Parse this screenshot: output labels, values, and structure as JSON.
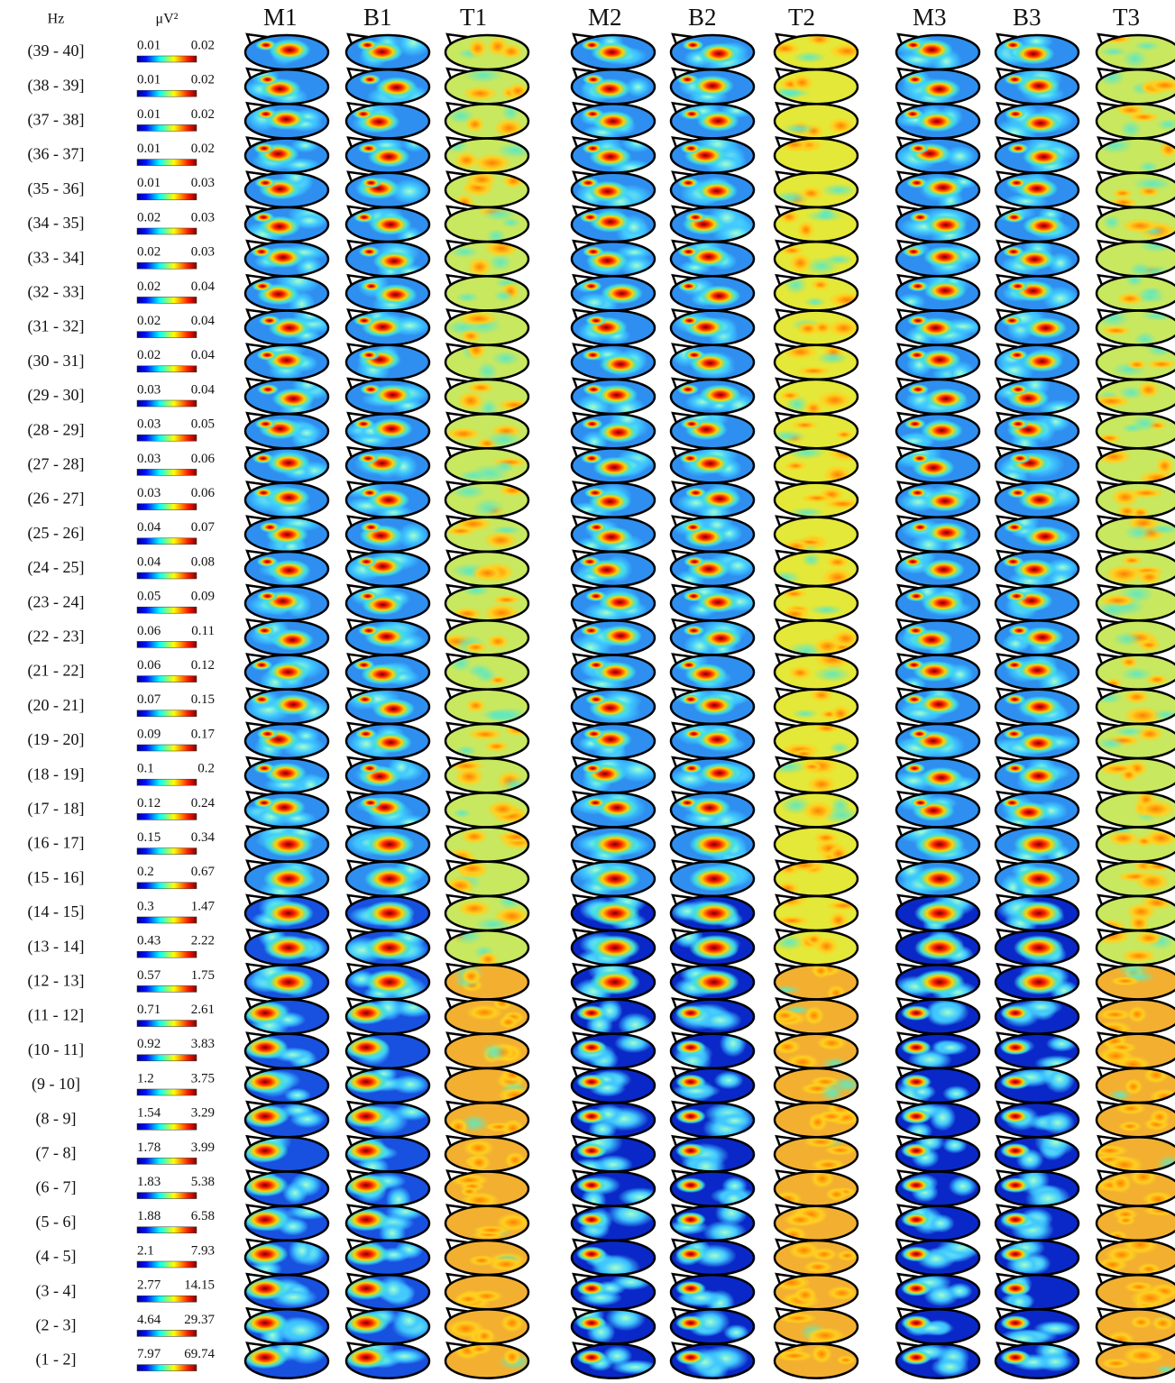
{
  "header": {
    "columns": [
      "Hz",
      "μV²",
      "M1",
      "B1",
      "T1",
      "M2",
      "B2",
      "T2",
      "M3",
      "B3",
      "T3"
    ]
  },
  "rows": [
    {
      "band": "(39 - 40]",
      "min": "0.01",
      "max": "0.02"
    },
    {
      "band": "(38 - 39]",
      "min": "0.01",
      "max": "0.02"
    },
    {
      "band": "(37 - 38]",
      "min": "0.01",
      "max": "0.02"
    },
    {
      "band": "(36 - 37]",
      "min": "0.01",
      "max": "0.02"
    },
    {
      "band": "(35 - 36]",
      "min": "0.01",
      "max": "0.03"
    },
    {
      "band": "(34 - 35]",
      "min": "0.02",
      "max": "0.03"
    },
    {
      "band": "(33 - 34]",
      "min": "0.02",
      "max": "0.03"
    },
    {
      "band": "(32 - 33]",
      "min": "0.02",
      "max": "0.04"
    },
    {
      "band": "(31 - 32]",
      "min": "0.02",
      "max": "0.04"
    },
    {
      "band": "(30 - 31]",
      "min": "0.02",
      "max": "0.04"
    },
    {
      "band": "(29 - 30]",
      "min": "0.03",
      "max": "0.04"
    },
    {
      "band": "(28 - 29]",
      "min": "0.03",
      "max": "0.05"
    },
    {
      "band": "(27 - 28]",
      "min": "0.03",
      "max": "0.06"
    },
    {
      "band": "(26 - 27]",
      "min": "0.03",
      "max": "0.06"
    },
    {
      "band": "(25 - 26]",
      "min": "0.04",
      "max": "0.07"
    },
    {
      "band": "(24 - 25]",
      "min": "0.04",
      "max": "0.08"
    },
    {
      "band": "(23 - 24]",
      "min": "0.05",
      "max": "0.09"
    },
    {
      "band": "(22 - 23]",
      "min": "0.06",
      "max": "0.11"
    },
    {
      "band": "(21 - 22]",
      "min": "0.06",
      "max": "0.12"
    },
    {
      "band": "(20 - 21]",
      "min": "0.07",
      "max": "0.15"
    },
    {
      "band": "(19 - 20]",
      "min": "0.09",
      "max": "0.17"
    },
    {
      "band": "(18 - 19]",
      "min": "0.1",
      "max": "0.2"
    },
    {
      "band": "(17 - 18]",
      "min": "0.12",
      "max": "0.24"
    },
    {
      "band": "(16 - 17]",
      "min": "0.15",
      "max": "0.34"
    },
    {
      "band": "(15 - 16]",
      "min": "0.2",
      "max": "0.67"
    },
    {
      "band": "(14 - 15]",
      "min": "0.3",
      "max": "1.47"
    },
    {
      "band": "(13 - 14]",
      "min": "0.43",
      "max": "2.22"
    },
    {
      "band": "(12 - 13]",
      "min": "0.57",
      "max": "1.75"
    },
    {
      "band": "(11 - 12]",
      "min": "0.71",
      "max": "2.61"
    },
    {
      "band": "(10 - 11]",
      "min": "0.92",
      "max": "3.83"
    },
    {
      "band": "(9 - 10]",
      "min": "1.2",
      "max": "3.75"
    },
    {
      "band": "(8 - 9]",
      "min": "1.54",
      "max": "3.29"
    },
    {
      "band": "(7 - 8]",
      "min": "1.78",
      "max": "3.99"
    },
    {
      "band": "(6 - 7]",
      "min": "1.83",
      "max": "5.38"
    },
    {
      "band": "(5 - 6]",
      "min": "1.88",
      "max": "6.58"
    },
    {
      "band": "(4 - 5]",
      "min": "2.1",
      "max": "7.93"
    },
    {
      "band": "(3 - 4]",
      "min": "2.77",
      "max": "14.15"
    },
    {
      "band": "(2 - 3]",
      "min": "4.64",
      "max": "29.37"
    },
    {
      "band": "(1 - 2]",
      "min": "7.97",
      "max": "69.74"
    }
  ]
}
